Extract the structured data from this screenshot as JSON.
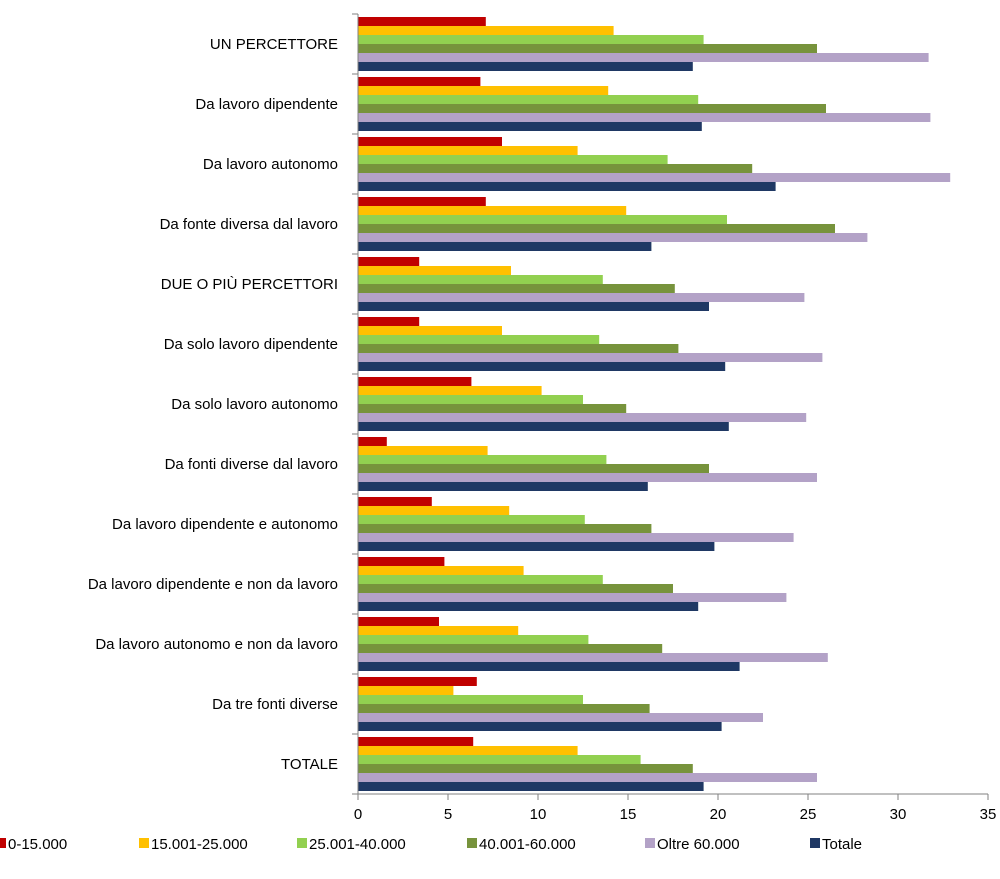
{
  "chart_data": {
    "type": "bar",
    "orientation": "horizontal",
    "title": "",
    "xlabel": "",
    "ylabel": "",
    "xlim": [
      0,
      35
    ],
    "x_ticks": [
      0,
      5,
      10,
      15,
      20,
      25,
      30,
      35
    ],
    "grid": false,
    "legend_position": "bottom",
    "categories": [
      "UN PERCETTORE",
      "Da lavoro dipendente",
      "Da lavoro autonomo",
      "Da fonte diversa dal lavoro",
      "DUE O PIÙ PERCETTORI",
      "Da solo lavoro dipendente",
      "Da solo lavoro autonomo",
      "Da fonti diverse dal lavoro",
      "Da lavoro dipendente e autonomo",
      "Da lavoro dipendente e non da lavoro",
      "Da lavoro autonomo e non da lavoro",
      "Da tre fonti diverse",
      "TOTALE"
    ],
    "series": [
      {
        "name": "0-15.000",
        "color": "#c00000",
        "values": [
          7.1,
          6.8,
          8.0,
          7.1,
          3.4,
          3.4,
          6.3,
          1.6,
          4.1,
          4.8,
          4.5,
          6.6,
          6.4
        ]
      },
      {
        "name": "15.001-25.000",
        "color": "#ffc000",
        "values": [
          14.2,
          13.9,
          12.2,
          14.9,
          8.5,
          8.0,
          10.2,
          7.2,
          8.4,
          9.2,
          8.9,
          5.3,
          12.2
        ]
      },
      {
        "name": "25.001-40.000",
        "color": "#92d050",
        "values": [
          19.2,
          18.9,
          17.2,
          20.5,
          13.6,
          13.4,
          12.5,
          13.8,
          12.6,
          13.6,
          12.8,
          12.5,
          15.7
        ]
      },
      {
        "name": "40.001-60.000",
        "color": "#77933c",
        "values": [
          25.5,
          26.0,
          21.9,
          26.5,
          17.6,
          17.8,
          14.9,
          19.5,
          16.3,
          17.5,
          16.9,
          16.2,
          18.6
        ]
      },
      {
        "name": "Oltre 60.000",
        "color": "#b3a2c7",
        "values": [
          31.7,
          31.8,
          32.9,
          28.3,
          24.8,
          25.8,
          24.9,
          25.5,
          24.2,
          23.8,
          26.1,
          22.5,
          25.5
        ]
      },
      {
        "name": "Totale",
        "color": "#1f3864",
        "values": [
          18.6,
          19.1,
          23.2,
          16.3,
          19.5,
          20.4,
          20.6,
          16.1,
          19.8,
          18.9,
          21.2,
          20.2,
          19.2
        ]
      }
    ]
  }
}
